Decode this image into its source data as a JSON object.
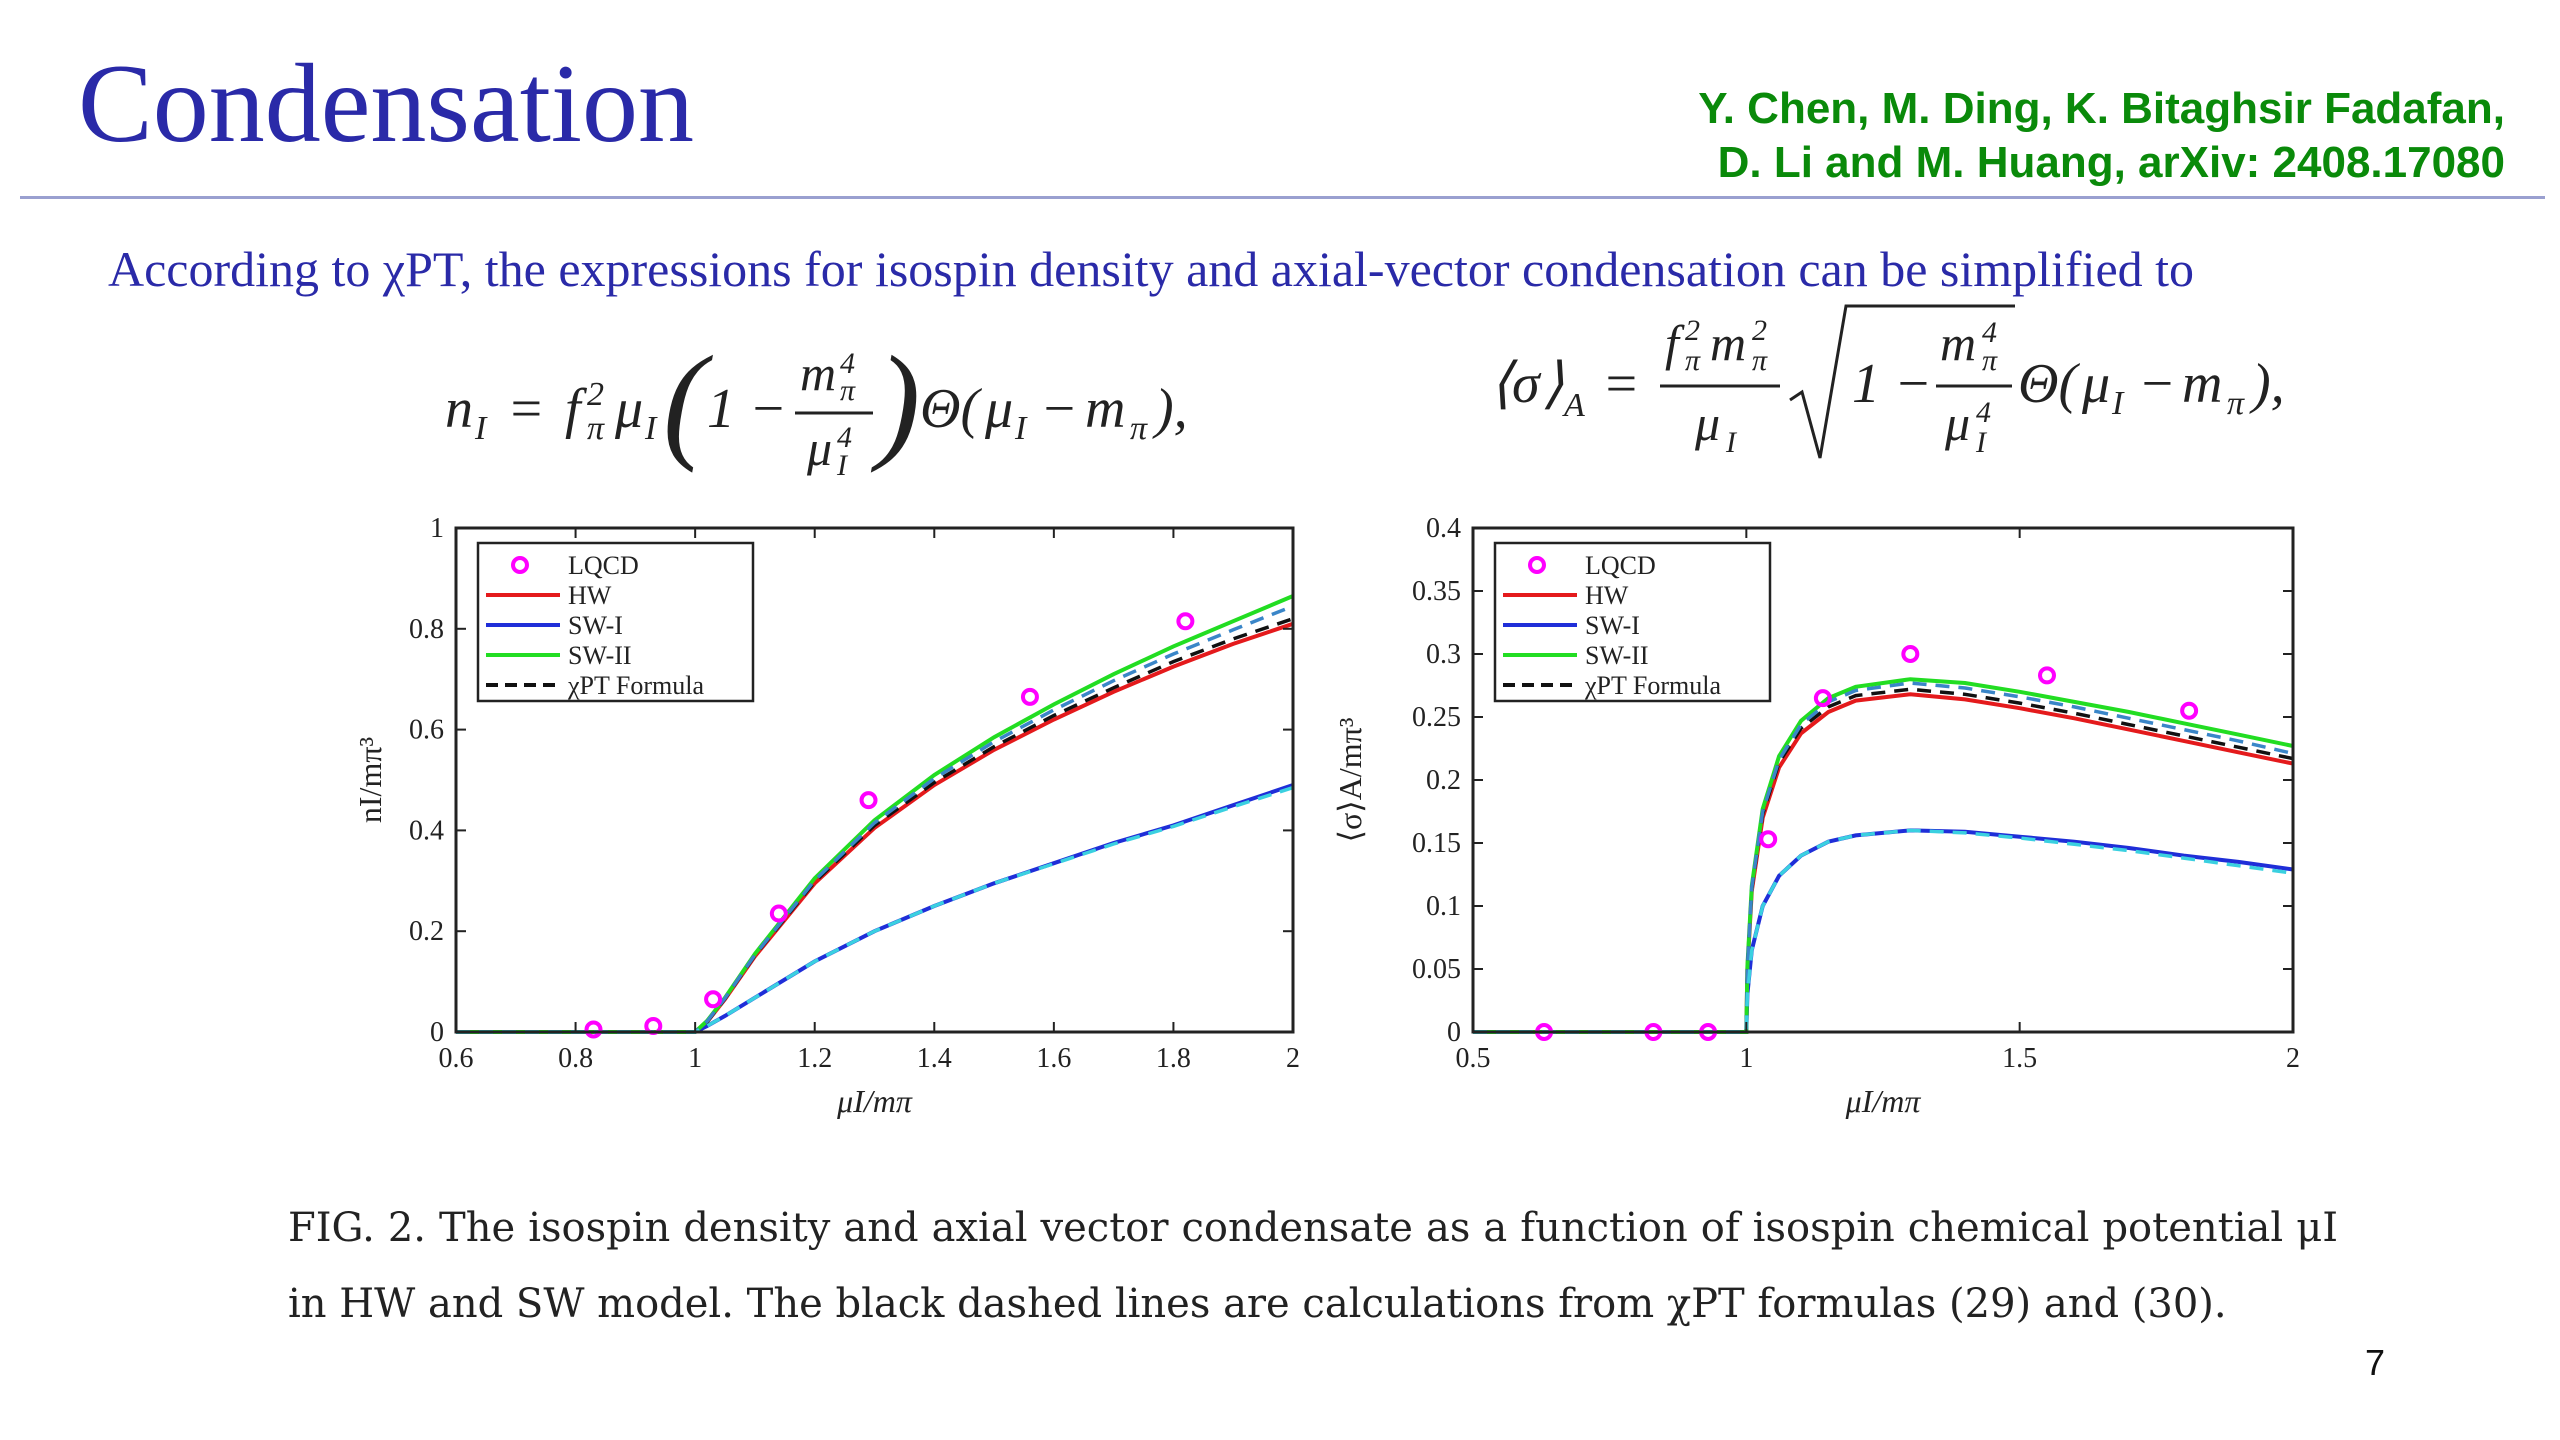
{
  "slide": {
    "title": "Condensation",
    "authors_line1": "Y. Chen, M. Ding, K. Bitaghsir Fadafan,",
    "authors_line2": "D. Li and M. Huang, arXiv: 2408.17080",
    "intro": "According to χPT, the expressions for isospin density and axial-vector condensation can be simplified to",
    "formula_left": "n_I = f_π² μ_I (1 − m_π⁴ / μ_I⁴) Θ(μ_I − m_π),",
    "formula_right": "⟨σ⟩_A = (f_π² m_π² / μ_I) √(1 − m_π⁴ / μ_I⁴) Θ(μ_I − m_π),",
    "caption": "FIG. 2. The isospin density and axial vector condensate as a function of isospin chemical potential μI in HW and SW model. The black dashed lines are calculations from χPT formulas (29) and (30).",
    "page_number": "7"
  },
  "colors": {
    "lqcd": "#ff00ff",
    "hw": "#e41a1c",
    "sw1": "#1f2ed8",
    "sw2": "#22dd22",
    "chipt": "#111111",
    "chipt_sw2": "#3a86c8",
    "chipt_sw1": "#3ad0e0"
  },
  "chart_data": [
    {
      "type": "line",
      "xlabel": "μI/mπ",
      "ylabel": "nI/mπ³",
      "xlim": [
        0.6,
        2
      ],
      "ylim": [
        0,
        1
      ],
      "xticks": [
        "0.6",
        "0.8",
        "1",
        "1.2",
        "1.4",
        "1.6",
        "1.8",
        "2"
      ],
      "yticks": [
        "0",
        "0.2",
        "0.4",
        "0.6",
        "0.8",
        "1"
      ],
      "legend_position": "top-left",
      "legend": [
        "LQCD",
        "HW",
        "SW-I",
        "SW-II",
        "χPT Formula"
      ],
      "scatter": {
        "name": "LQCD",
        "x": [
          0.83,
          0.93,
          1.03,
          1.14,
          1.29,
          1.56,
          1.82
        ],
        "y": [
          0.005,
          0.012,
          0.065,
          0.235,
          0.46,
          0.665,
          0.815
        ]
      },
      "series": [
        {
          "name": "HW",
          "x": [
            0.6,
            1.0,
            1.02,
            1.05,
            1.1,
            1.2,
            1.3,
            1.4,
            1.5,
            1.6,
            1.7,
            1.8,
            1.9,
            2.0
          ],
          "y": [
            0,
            0,
            0.02,
            0.065,
            0.15,
            0.295,
            0.405,
            0.49,
            0.56,
            0.62,
            0.675,
            0.725,
            0.77,
            0.81
          ]
        },
        {
          "name": "SW-I",
          "x": [
            0.6,
            1.0,
            1.02,
            1.05,
            1.1,
            1.2,
            1.3,
            1.4,
            1.5,
            1.6,
            1.7,
            1.8,
            1.9,
            2.0
          ],
          "y": [
            0,
            0,
            0.012,
            0.032,
            0.068,
            0.14,
            0.2,
            0.25,
            0.295,
            0.335,
            0.375,
            0.41,
            0.45,
            0.49
          ]
        },
        {
          "name": "SW-II",
          "x": [
            0.6,
            1.0,
            1.02,
            1.05,
            1.1,
            1.2,
            1.3,
            1.4,
            1.5,
            1.6,
            1.7,
            1.8,
            1.9,
            2.0
          ],
          "y": [
            0,
            0,
            0.022,
            0.068,
            0.155,
            0.305,
            0.42,
            0.51,
            0.585,
            0.65,
            0.71,
            0.765,
            0.815,
            0.865
          ]
        },
        {
          "name": "χPT Formula (HW)",
          "x": [
            0.6,
            1.0,
            1.02,
            1.05,
            1.1,
            1.2,
            1.3,
            1.4,
            1.5,
            1.6,
            1.7,
            1.8,
            1.9,
            2.0
          ],
          "y": [
            0,
            0,
            0.02,
            0.066,
            0.152,
            0.298,
            0.41,
            0.495,
            0.566,
            0.628,
            0.683,
            0.735,
            0.78,
            0.82
          ]
        },
        {
          "name": "χPT Formula (SW-II)",
          "x": [
            0.6,
            1.0,
            1.02,
            1.05,
            1.1,
            1.2,
            1.3,
            1.4,
            1.5,
            1.6,
            1.7,
            1.8,
            1.9,
            2.0
          ],
          "y": [
            0,
            0,
            0.021,
            0.067,
            0.153,
            0.301,
            0.415,
            0.503,
            0.576,
            0.639,
            0.697,
            0.75,
            0.798,
            0.845
          ]
        },
        {
          "name": "χPT Formula (SW-I)",
          "x": [
            0.6,
            1.0,
            1.02,
            1.05,
            1.1,
            1.2,
            1.3,
            1.4,
            1.5,
            1.6,
            1.7,
            1.8,
            1.9,
            2.0
          ],
          "y": [
            0,
            0,
            0.012,
            0.032,
            0.068,
            0.14,
            0.2,
            0.25,
            0.295,
            0.334,
            0.373,
            0.408,
            0.447,
            0.485
          ]
        }
      ]
    },
    {
      "type": "line",
      "xlabel": "μI/mπ",
      "ylabel": "⟨σ⟩A/mπ³",
      "xlim": [
        0.5,
        2
      ],
      "ylim": [
        0,
        0.4
      ],
      "xticks": [
        "0.5",
        "1",
        "1.5",
        "2"
      ],
      "yticks": [
        "0",
        "0.05",
        "0.1",
        "0.15",
        "0.2",
        "0.25",
        "0.3",
        "0.35",
        "0.4"
      ],
      "legend_position": "top-left",
      "legend": [
        "LQCD",
        "HW",
        "SW-I",
        "SW-II",
        "χPT Formula"
      ],
      "scatter": {
        "name": "LQCD",
        "x": [
          0.63,
          0.83,
          0.93,
          1.04,
          1.14,
          1.3,
          1.55,
          1.81
        ],
        "y": [
          0,
          0,
          0,
          0.153,
          0.265,
          0.3,
          0.283,
          0.255
        ]
      },
      "series": [
        {
          "name": "HW",
          "x": [
            0.5,
            1.0,
            1.002,
            1.01,
            1.03,
            1.06,
            1.1,
            1.15,
            1.2,
            1.3,
            1.4,
            1.5,
            1.6,
            1.7,
            1.8,
            1.9,
            2.0
          ],
          "y": [
            0,
            0,
            0.05,
            0.112,
            0.17,
            0.21,
            0.237,
            0.254,
            0.263,
            0.268,
            0.264,
            0.257,
            0.249,
            0.24,
            0.231,
            0.222,
            0.213
          ]
        },
        {
          "name": "SW-I",
          "x": [
            0.5,
            1.0,
            1.002,
            1.01,
            1.03,
            1.06,
            1.1,
            1.15,
            1.2,
            1.3,
            1.4,
            1.5,
            1.6,
            1.7,
            1.8,
            1.9,
            2.0
          ],
          "y": [
            0,
            0,
            0.03,
            0.065,
            0.1,
            0.124,
            0.14,
            0.151,
            0.156,
            0.16,
            0.159,
            0.155,
            0.151,
            0.146,
            0.14,
            0.135,
            0.129
          ]
        },
        {
          "name": "SW-II",
          "x": [
            0.5,
            1.0,
            1.002,
            1.01,
            1.03,
            1.06,
            1.1,
            1.15,
            1.2,
            1.3,
            1.4,
            1.5,
            1.6,
            1.7,
            1.8,
            1.9,
            2.0
          ],
          "y": [
            0,
            0,
            0.052,
            0.116,
            0.177,
            0.219,
            0.247,
            0.265,
            0.274,
            0.28,
            0.277,
            0.27,
            0.262,
            0.254,
            0.245,
            0.236,
            0.227
          ]
        },
        {
          "name": "χPT Formula (HW)",
          "x": [
            0.5,
            1.0,
            1.002,
            1.01,
            1.03,
            1.06,
            1.1,
            1.15,
            1.2,
            1.3,
            1.4,
            1.5,
            1.6,
            1.7,
            1.8,
            1.9,
            2.0
          ],
          "y": [
            0,
            0,
            0.051,
            0.114,
            0.173,
            0.214,
            0.241,
            0.258,
            0.267,
            0.272,
            0.268,
            0.261,
            0.253,
            0.244,
            0.235,
            0.226,
            0.217
          ]
        },
        {
          "name": "χPT Formula (SW-II)",
          "x": [
            0.5,
            1.0,
            1.002,
            1.01,
            1.03,
            1.06,
            1.1,
            1.15,
            1.2,
            1.3,
            1.4,
            1.5,
            1.6,
            1.7,
            1.8,
            1.9,
            2.0
          ],
          "y": [
            0,
            0,
            0.051,
            0.115,
            0.175,
            0.216,
            0.244,
            0.262,
            0.271,
            0.277,
            0.273,
            0.266,
            0.258,
            0.249,
            0.24,
            0.231,
            0.221
          ]
        },
        {
          "name": "χPT Formula (SW-I)",
          "x": [
            0.5,
            1.0,
            1.002,
            1.01,
            1.03,
            1.06,
            1.1,
            1.15,
            1.2,
            1.3,
            1.4,
            1.5,
            1.6,
            1.7,
            1.8,
            1.9,
            2.0
          ],
          "y": [
            0,
            0,
            0.03,
            0.065,
            0.1,
            0.124,
            0.14,
            0.151,
            0.156,
            0.16,
            0.158,
            0.154,
            0.149,
            0.144,
            0.138,
            0.132,
            0.126
          ]
        }
      ]
    }
  ]
}
